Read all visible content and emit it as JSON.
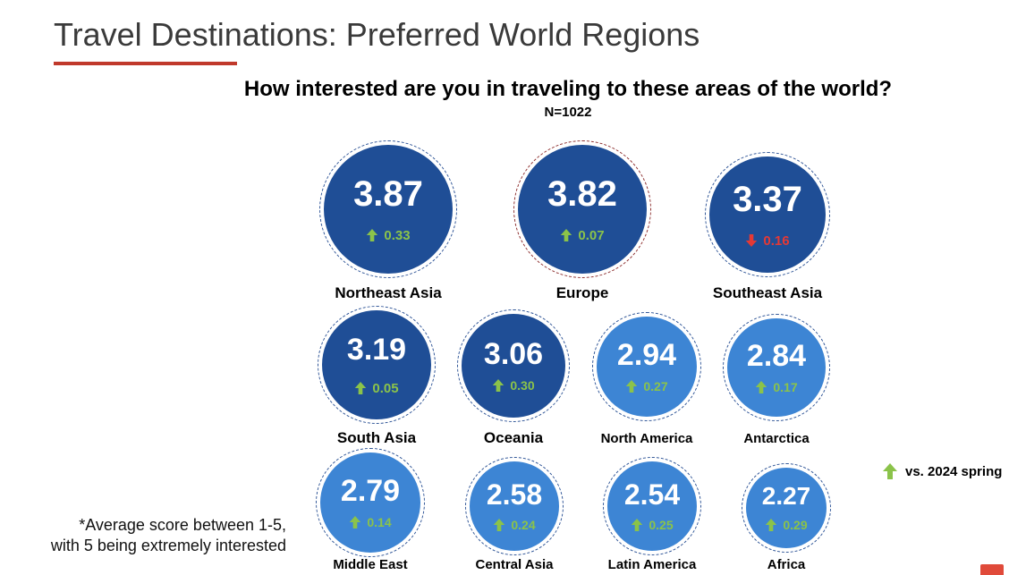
{
  "header": {
    "title": "Travel Destinations: Preferred World Regions",
    "rule_color": "#c0392b"
  },
  "question": "How interested are you in traveling to these areas of the world?",
  "sample": "N=1022",
  "legend": {
    "label": "vs. 2024 spring",
    "icon": "green-up-arrow"
  },
  "footnote": {
    "line1": "*Average score between 1-5,",
    "line2": "with 5 being extremely interested"
  },
  "colors": {
    "dark_blue": "#1f4e96",
    "light_blue": "#3d85d4",
    "up": "#8bc34a",
    "down": "#e53935",
    "europe_ring": "#8b2c2c"
  },
  "chart_data": {
    "type": "bubble",
    "title": "How interested are you in traveling to these areas of the world?",
    "subtitle": "N=1022",
    "scale": "1-5",
    "comparison": "vs. 2024 spring",
    "points": [
      {
        "region": "Northeast Asia",
        "score": 3.87,
        "change": 0.33,
        "direction": "up"
      },
      {
        "region": "Europe",
        "score": 3.82,
        "change": 0.07,
        "direction": "up"
      },
      {
        "region": "Southeast Asia",
        "score": 3.37,
        "change": 0.16,
        "direction": "down"
      },
      {
        "region": "South Asia",
        "score": 3.19,
        "change": 0.05,
        "direction": "up"
      },
      {
        "region": "Oceania",
        "score": 3.06,
        "change": 0.3,
        "direction": "up"
      },
      {
        "region": "North America",
        "score": 2.94,
        "change": 0.27,
        "direction": "up"
      },
      {
        "region": "Antarctica",
        "score": 2.84,
        "change": 0.17,
        "direction": "up"
      },
      {
        "region": "Middle East",
        "score": 2.79,
        "change": 0.14,
        "direction": "up"
      },
      {
        "region": "Central Asia",
        "score": 2.58,
        "change": 0.24,
        "direction": "up"
      },
      {
        "region": "Latin America",
        "score": 2.54,
        "change": 0.25,
        "direction": "up"
      },
      {
        "region": "Africa",
        "score": 2.27,
        "change": 0.29,
        "direction": "up"
      }
    ],
    "display": {
      "scores": [
        "3.87",
        "3.82",
        "3.37",
        "3.19",
        "3.06",
        "2.94",
        "2.84",
        "2.79",
        "2.58",
        "2.54",
        "2.27"
      ],
      "changes": [
        "0.33",
        "0.07",
        "0.16",
        "0.05",
        "0.30",
        "0.27",
        "0.17",
        "0.14",
        "0.24",
        "0.25",
        "0.29"
      ]
    }
  }
}
